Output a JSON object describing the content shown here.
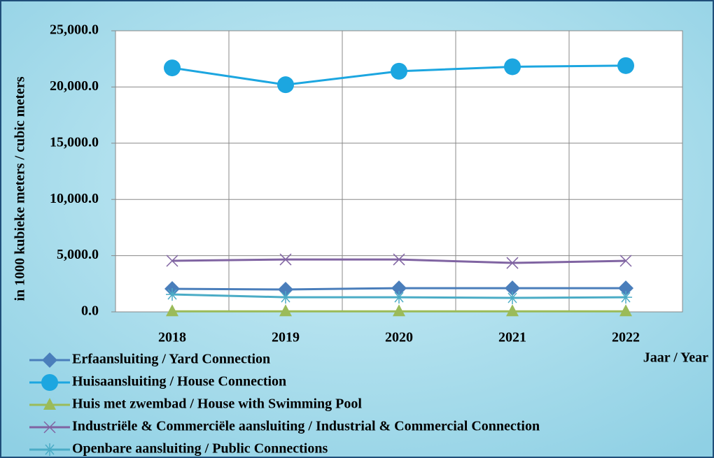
{
  "chart_data": {
    "type": "line",
    "y_label": "in 1000 kubieke meters / cubic meters",
    "x_label": "Jaar / Year",
    "categories": [
      "2018",
      "2019",
      "2020",
      "2021",
      "2022"
    ],
    "series": [
      {
        "name": "Erfaansluiting / Yard Connection",
        "color": "#4a7ebb",
        "marker": "diamond",
        "values": [
          2050,
          1990,
          2110,
          2110,
          2110
        ]
      },
      {
        "name": "Huisaansluiting / House Connection",
        "color": "#1ca6e0",
        "marker": "circle",
        "values": [
          21700,
          20200,
          21400,
          21800,
          21900
        ]
      },
      {
        "name": "Huis met zwembad / House with Swimming Pool",
        "color": "#9bbb59",
        "marker": "triangle",
        "values": [
          50,
          50,
          50,
          50,
          50
        ]
      },
      {
        "name": "Industriële & Commerciële aansluiting / Industrial & Commercial Connection",
        "color": "#8064a2",
        "marker": "x",
        "values": [
          4540,
          4660,
          4660,
          4350,
          4540
        ]
      },
      {
        "name": "Openbare aansluiting / Public Connections",
        "color": "#4bacc6",
        "marker": "star",
        "values": [
          1550,
          1300,
          1300,
          1240,
          1300
        ]
      }
    ],
    "ylim": [
      0,
      25000
    ],
    "yticks": [
      {
        "value": 0,
        "label": "0.0"
      },
      {
        "value": 5000,
        "label": "5,000.0"
      },
      {
        "value": 10000,
        "label": "10,000.0"
      },
      {
        "value": 15000,
        "label": "15,000.0"
      },
      {
        "value": 20000,
        "label": "20,000.0"
      },
      {
        "value": 25000,
        "label": "25,000.0"
      }
    ],
    "grid": true
  }
}
